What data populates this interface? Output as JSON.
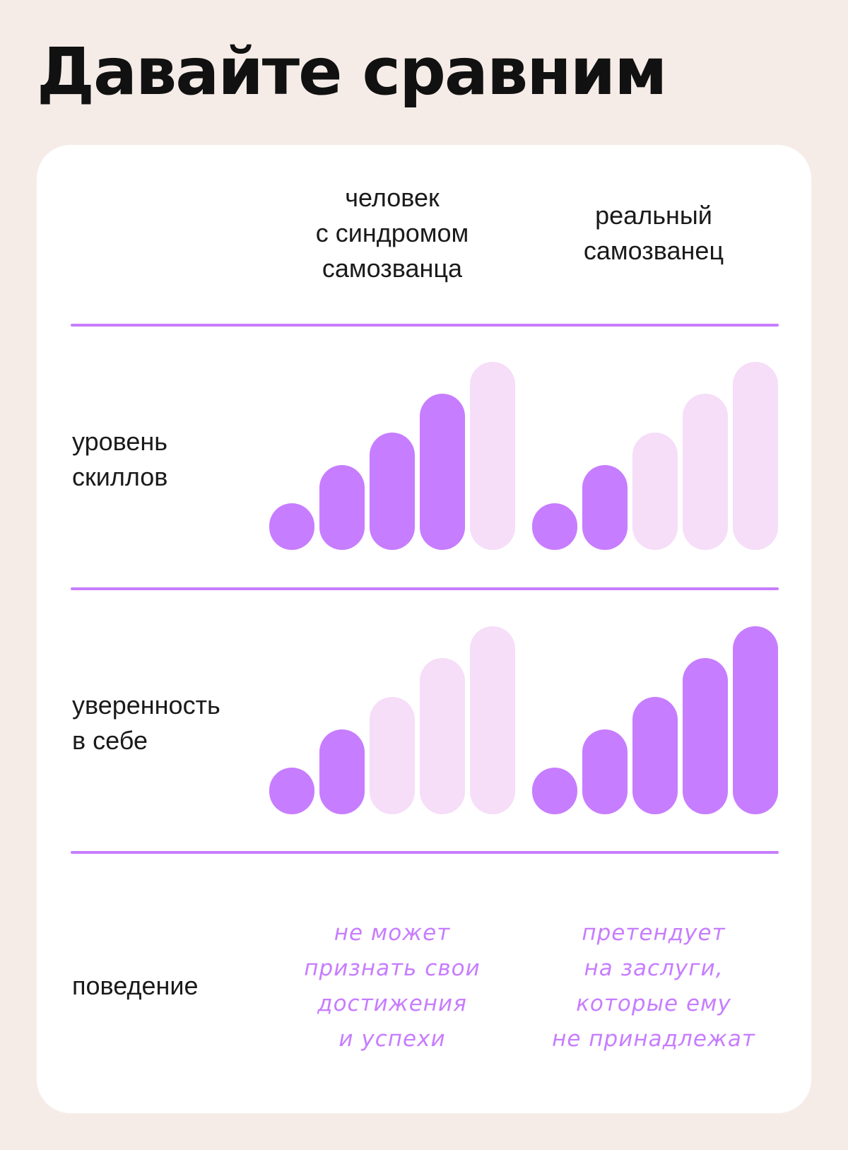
{
  "title": "Давайте сравним",
  "columns": [
    {
      "lines": [
        "человек",
        "с синдромом",
        "самозванца"
      ]
    },
    {
      "lines": [
        "реальный",
        "самозванец"
      ]
    }
  ],
  "rows": [
    {
      "label_lines": [
        "уровень",
        "скиллов"
      ],
      "levels": [
        {
          "filled": 4,
          "total": 5
        },
        {
          "filled": 2,
          "total": 5
        }
      ]
    },
    {
      "label_lines": [
        "уверенность",
        "в себе"
      ],
      "levels": [
        {
          "filled": 2,
          "total": 5
        },
        {
          "filled": 5,
          "total": 5
        }
      ]
    }
  ],
  "behavior": {
    "label": "поведение",
    "values": [
      {
        "lines": [
          "не может",
          "признать свои",
          "достижения",
          "и успехи"
        ]
      },
      {
        "lines": [
          "претендует",
          "на заслуги,",
          "которые ему",
          "не принадлежат"
        ]
      }
    ]
  },
  "colors": {
    "accent": "#c77dff",
    "muted": "#f6ddf8",
    "background": "#f5ece8",
    "card": "#ffffff"
  }
}
